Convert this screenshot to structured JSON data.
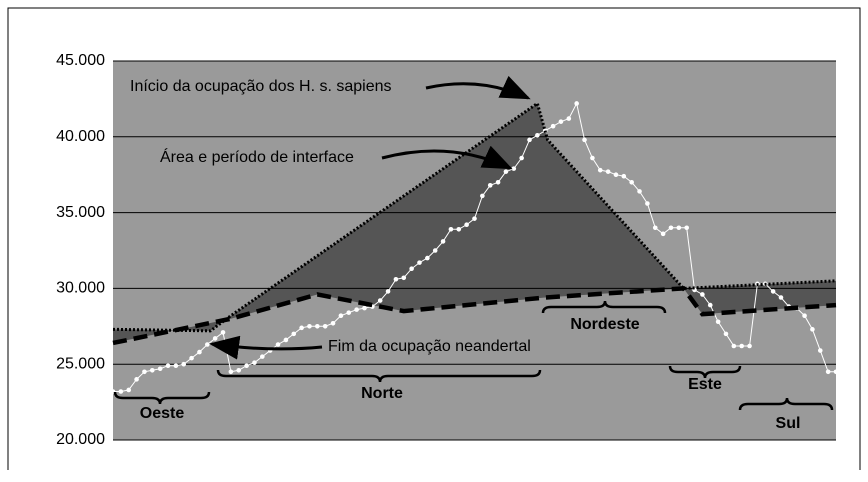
{
  "chart_data": {
    "type": "line",
    "ylim": [
      20000,
      45000
    ],
    "yticks": [
      {
        "value": 20000,
        "label": "20.000"
      },
      {
        "value": 25000,
        "label": "25.000"
      },
      {
        "value": 30000,
        "label": "30.000"
      },
      {
        "value": 35000,
        "label": "35.000"
      },
      {
        "value": 40000,
        "label": "40.000"
      },
      {
        "value": 45000,
        "label": "45.000"
      }
    ],
    "xlim": [
      0,
      92
    ],
    "grid": true,
    "background": "#9a9a9a",
    "series": [
      {
        "color": "#ffffff",
        "markers": true,
        "values": [
          23200,
          23200,
          23300,
          24000,
          24500,
          24600,
          24700,
          24900,
          24900,
          25000,
          25400,
          25800,
          26300,
          26700,
          27100,
          24500,
          24600,
          24900,
          25100,
          25500,
          25900,
          26300,
          26600,
          27000,
          27400,
          27500,
          27500,
          27500,
          27700,
          28200,
          28400,
          28600,
          28700,
          28800,
          29200,
          29800,
          30600,
          30700,
          31300,
          31700,
          32000,
          32500,
          33100,
          33900,
          33900,
          34200,
          34600,
          36100,
          36800,
          37000,
          37700,
          37900,
          38600,
          39800,
          40100,
          40400,
          40700,
          41000,
          41200,
          42200,
          39800,
          38600,
          37800,
          37700,
          37500,
          37400,
          37000,
          36400,
          35600,
          34000,
          33600,
          34000,
          34000,
          34000,
          29900,
          29600,
          28900,
          27800,
          27000,
          26200,
          26200,
          26200,
          30300,
          30300,
          29800,
          29400,
          28800,
          28700,
          28200,
          27300,
          25900,
          24500,
          24500
        ]
      },
      {
        "color": "#000000",
        "dash": "dotted",
        "fill_color": "#555555",
        "x": [
          0,
          12.4,
          15,
          54,
          55.3,
          72.6,
          92
        ],
        "values": [
          27300,
          27200,
          28200,
          42200,
          39800,
          30000,
          30500
        ]
      },
      {
        "color": "#000000",
        "dash": "dashed",
        "x": [
          0,
          15,
          26,
          37,
          55,
          72.6,
          75,
          92
        ],
        "values": [
          26400,
          28000,
          29600,
          28500,
          29400,
          30000,
          28300,
          28900
        ]
      }
    ],
    "annotations": [
      "Início da ocupação dos H. s. sapiens",
      "Área e período de interface",
      "Fim da ocupação neandertal",
      "Oeste",
      "Norte",
      "Nordeste",
      "Este",
      "Sul"
    ]
  }
}
